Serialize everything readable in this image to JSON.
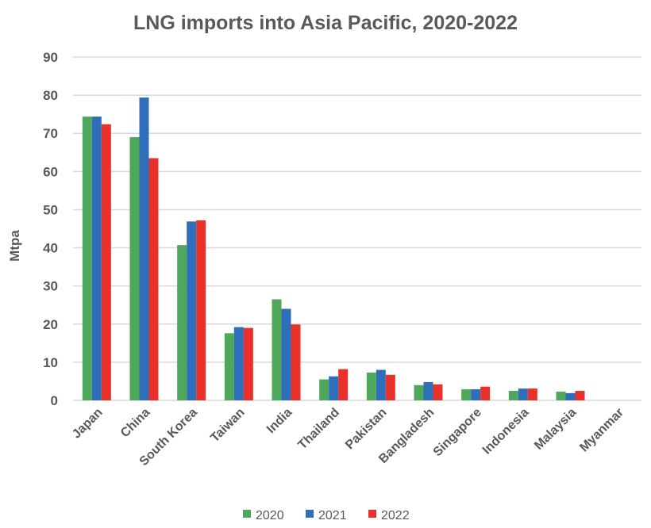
{
  "chart_data": {
    "type": "bar",
    "title": "LNG imports into Asia Pacific, 2020-2022",
    "xlabel": "",
    "ylabel": "Mtpa",
    "ylim": [
      0,
      90
    ],
    "yticks": [
      0,
      10,
      20,
      30,
      40,
      50,
      60,
      70,
      80,
      90
    ],
    "grid": true,
    "legend_position": "bottom",
    "categories": [
      "Japan",
      "China",
      "South Korea",
      "Taiwan",
      "India",
      "Thailand",
      "Pakistan",
      "Bangladesh",
      "Singapore",
      "Indonesia",
      "Malaysia",
      "Myanmar"
    ],
    "series": [
      {
        "name": "2020",
        "color": "#4EA85B",
        "values": [
          74.4,
          69.0,
          40.7,
          17.6,
          26.5,
          5.5,
          7.3,
          4.0,
          2.9,
          2.5,
          2.3,
          0
        ]
      },
      {
        "name": "2021",
        "color": "#2F6EBA",
        "values": [
          74.4,
          79.4,
          46.9,
          19.2,
          24.0,
          6.3,
          8.0,
          4.8,
          2.9,
          3.1,
          1.9,
          0
        ]
      },
      {
        "name": "2022",
        "color": "#E8312A",
        "values": [
          72.4,
          63.5,
          47.2,
          19.0,
          19.9,
          8.2,
          6.7,
          4.2,
          3.6,
          3.1,
          2.5,
          0
        ]
      }
    ]
  }
}
